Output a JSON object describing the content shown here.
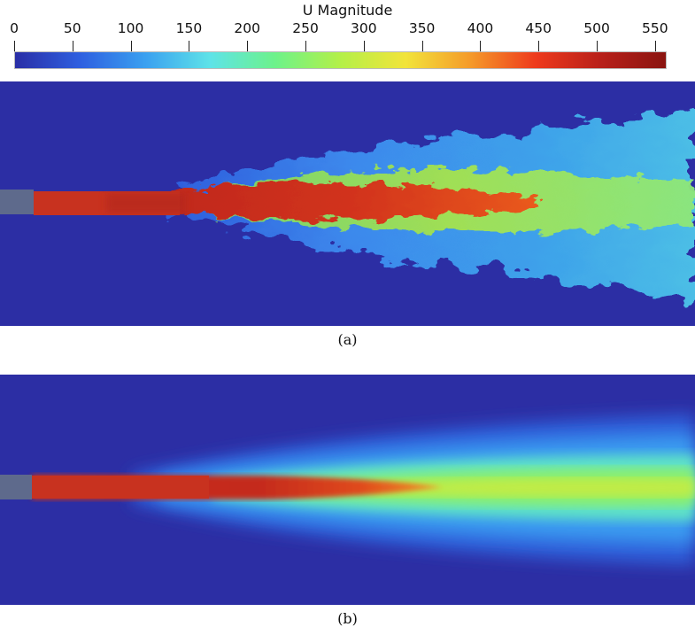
{
  "colorbar": {
    "title": "U Magnitude",
    "ticks": [
      "0",
      "50",
      "100",
      "150",
      "200",
      "250",
      "300",
      "350",
      "400",
      "450",
      "500",
      "550"
    ],
    "tick_values": [
      0,
      50,
      100,
      150,
      200,
      250,
      300,
      350,
      400,
      450,
      500,
      550
    ],
    "range": [
      0,
      560
    ],
    "colormap": [
      "#2a2ea6",
      "#2e5fe0",
      "#3aa0f0",
      "#5ee3e8",
      "#6df28a",
      "#b4f048",
      "#f2e43a",
      "#f59a2a",
      "#ee3a1c",
      "#b8201a",
      "#8a1410"
    ]
  },
  "panels": [
    {
      "caption": "(a)",
      "type": "instantaneous-turbulent-jet"
    },
    {
      "caption": "(b)",
      "type": "time-averaged-jet"
    }
  ],
  "colors": {
    "background": "#2c2ea4",
    "nozzle": "#5e6a8c",
    "core": "#c8321f"
  }
}
